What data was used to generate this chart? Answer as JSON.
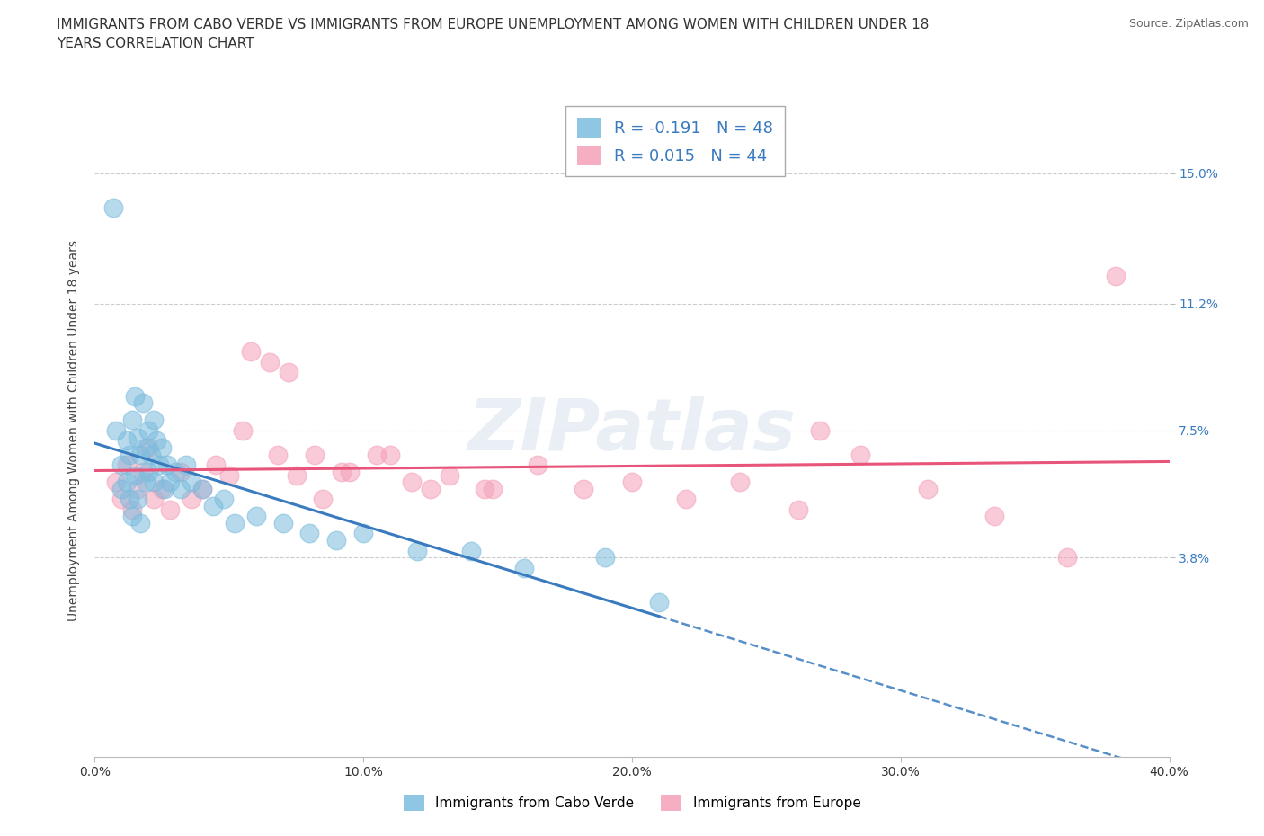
{
  "title_line1": "IMMIGRANTS FROM CABO VERDE VS IMMIGRANTS FROM EUROPE UNEMPLOYMENT AMONG WOMEN WITH CHILDREN UNDER 18",
  "title_line2": "YEARS CORRELATION CHART",
  "source": "Source: ZipAtlas.com",
  "ylabel": "Unemployment Among Women with Children Under 18 years",
  "xlim": [
    0.0,
    0.4
  ],
  "ylim": [
    -0.02,
    0.17
  ],
  "yticks": [
    0.038,
    0.075,
    0.112,
    0.15
  ],
  "ytick_labels": [
    "3.8%",
    "7.5%",
    "11.2%",
    "15.0%"
  ],
  "xticks": [
    0.0,
    0.1,
    0.2,
    0.3,
    0.4
  ],
  "xtick_labels": [
    "0.0%",
    "10.0%",
    "20.0%",
    "30.0%",
    "40.0%"
  ],
  "cabo_verde_R": -0.191,
  "cabo_verde_N": 48,
  "europe_R": 0.015,
  "europe_N": 44,
  "cabo_verde_color": "#7bbcde",
  "europe_color": "#f5a0b8",
  "cabo_verde_line_color": "#3a7bbf",
  "europe_line_color": "#e8547a",
  "grid_color": "#cccccc",
  "background_color": "#ffffff",
  "cabo_verde_x": [
    0.008,
    0.01,
    0.01,
    0.012,
    0.012,
    0.013,
    0.013,
    0.014,
    0.014,
    0.015,
    0.015,
    0.016,
    0.016,
    0.017,
    0.017,
    0.018,
    0.019,
    0.019,
    0.02,
    0.02,
    0.021,
    0.022,
    0.022,
    0.023,
    0.024,
    0.025,
    0.026,
    0.027,
    0.028,
    0.03,
    0.032,
    0.034,
    0.036,
    0.04,
    0.044,
    0.048,
    0.052,
    0.06,
    0.07,
    0.08,
    0.09,
    0.1,
    0.12,
    0.14,
    0.16,
    0.007,
    0.19,
    0.21
  ],
  "cabo_verde_y": [
    0.075,
    0.065,
    0.058,
    0.072,
    0.06,
    0.068,
    0.055,
    0.078,
    0.05,
    0.085,
    0.062,
    0.073,
    0.055,
    0.068,
    0.048,
    0.083,
    0.07,
    0.06,
    0.075,
    0.063,
    0.068,
    0.078,
    0.06,
    0.072,
    0.065,
    0.07,
    0.058,
    0.065,
    0.06,
    0.063,
    0.058,
    0.065,
    0.06,
    0.058,
    0.053,
    0.055,
    0.048,
    0.05,
    0.048,
    0.045,
    0.043,
    0.045,
    0.04,
    0.04,
    0.035,
    0.14,
    0.038,
    0.025
  ],
  "europe_x": [
    0.008,
    0.01,
    0.012,
    0.014,
    0.016,
    0.018,
    0.02,
    0.022,
    0.025,
    0.028,
    0.032,
    0.036,
    0.04,
    0.045,
    0.05,
    0.058,
    0.065,
    0.072,
    0.082,
    0.092,
    0.105,
    0.118,
    0.132,
    0.148,
    0.165,
    0.182,
    0.2,
    0.22,
    0.24,
    0.262,
    0.285,
    0.31,
    0.335,
    0.362,
    0.055,
    0.068,
    0.075,
    0.085,
    0.095,
    0.11,
    0.125,
    0.145,
    0.27,
    0.38
  ],
  "europe_y": [
    0.06,
    0.055,
    0.065,
    0.052,
    0.058,
    0.063,
    0.07,
    0.055,
    0.058,
    0.052,
    0.063,
    0.055,
    0.058,
    0.065,
    0.062,
    0.098,
    0.095,
    0.092,
    0.068,
    0.063,
    0.068,
    0.06,
    0.062,
    0.058,
    0.065,
    0.058,
    0.06,
    0.055,
    0.06,
    0.052,
    0.068,
    0.058,
    0.05,
    0.038,
    0.075,
    0.068,
    0.062,
    0.055,
    0.063,
    0.068,
    0.058,
    0.058,
    0.075,
    0.12
  ],
  "legend_label_cv": "R = -0.191   N = 48",
  "legend_label_eu": "R = 0.015   N = 44",
  "bottom_label_cv": "Immigrants from Cabo Verde",
  "bottom_label_eu": "Immigrants from Europe"
}
